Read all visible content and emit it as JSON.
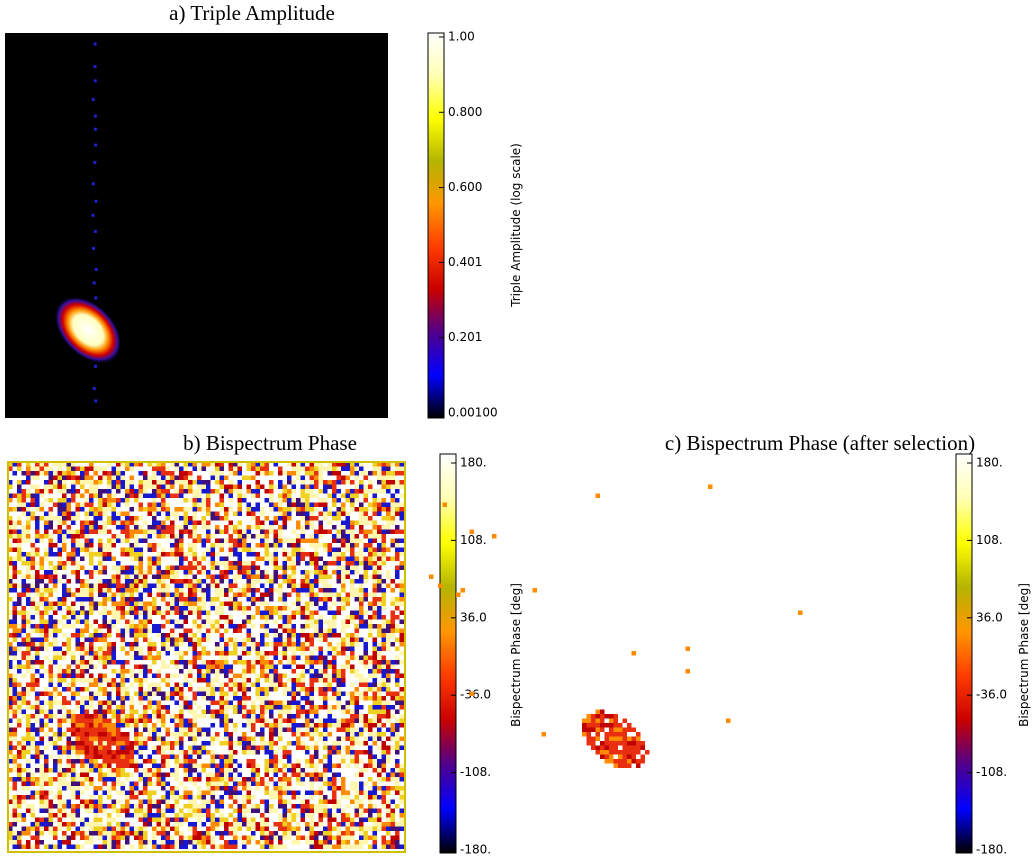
{
  "chart_data": [
    {
      "type": "heatmap",
      "title": "a) Triple Amplitude",
      "colorbar_label": "Triple Amplitude (log scale)",
      "clim": [
        0.001,
        1.0
      ],
      "cticks": [
        {
          "value": 0.001,
          "label": "0.00100"
        },
        0.201,
        0.401,
        {
          "value": 0.6,
          "label": "0.600"
        },
        {
          "value": 0.8,
          "label": "0.800"
        },
        {
          "value": 1.0,
          "label": "1.00"
        }
      ],
      "colormap": [
        "#000000",
        "#0000ff",
        "#50008c",
        "#c80000",
        "#ff3c00",
        "#ff9600",
        "#b4b400",
        "#ffff00",
        "#ffffb4",
        "#ffffff"
      ]
    },
    {
      "type": "heatmap",
      "title": "b) Bispectrum Phase",
      "colorbar_label": "Bispectrum Phase [deg]",
      "clim": [
        -180,
        180
      ],
      "cticks": [
        {
          "value": -180,
          "label": "-180."
        },
        {
          "value": -108,
          "label": "-108."
        },
        {
          "value": -36,
          "label": "-36.0"
        },
        {
          "value": 36,
          "label": "36.0"
        },
        {
          "value": 108,
          "label": "108."
        },
        {
          "value": 180,
          "label": "180."
        }
      ],
      "colormap": [
        "#000000",
        "#0000ff",
        "#50008c",
        "#c80000",
        "#ff3c00",
        "#ff9600",
        "#b4b400",
        "#ffff00",
        "#ffffb4",
        "#ffffff"
      ]
    },
    {
      "type": "heatmap",
      "title": "c) Bispectrum Phase (after selection)",
      "colorbar_label": "Bispectrum Phase [deg]",
      "clim": [
        -180,
        180
      ],
      "cticks": [
        {
          "value": -180,
          "label": "-180."
        },
        {
          "value": -108,
          "label": "-108."
        },
        {
          "value": -36,
          "label": "-36.0"
        },
        {
          "value": 36,
          "label": "36.0"
        },
        {
          "value": 108,
          "label": "108."
        },
        {
          "value": 180,
          "label": "180."
        }
      ],
      "colormap": [
        "#000000",
        "#0000ff",
        "#50008c",
        "#c80000",
        "#ff3c00",
        "#ff9600",
        "#b4b400",
        "#ffff00",
        "#ffffb4",
        "#ffffff"
      ]
    }
  ]
}
